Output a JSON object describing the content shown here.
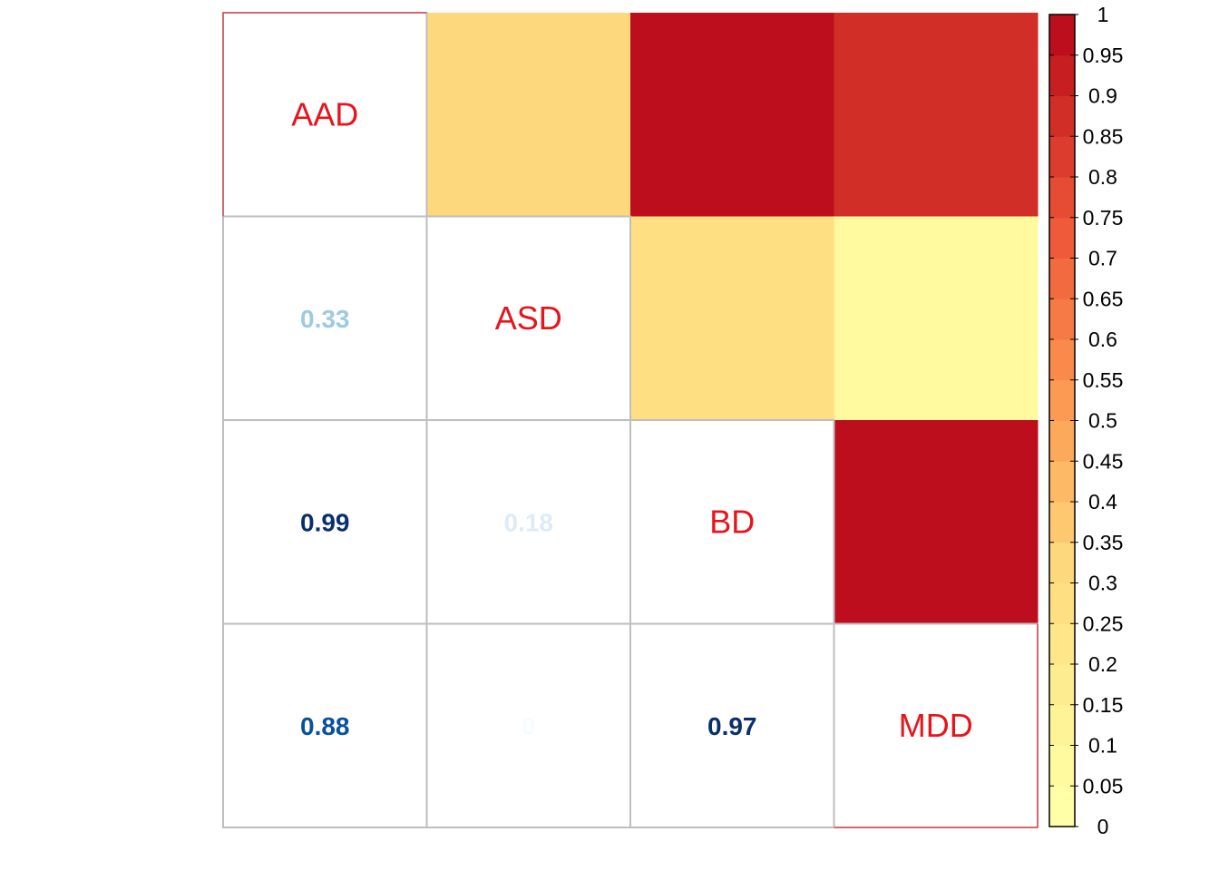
{
  "chart_data": {
    "type": "heatmap",
    "variables": [
      "AAD",
      "ASD",
      "BD",
      "MDD"
    ],
    "upper_triangle_values": [
      {
        "row": "AAD",
        "col": "ASD",
        "value": 0.3
      },
      {
        "row": "AAD",
        "col": "BD",
        "value": 0.98
      },
      {
        "row": "AAD",
        "col": "MDD",
        "value": 0.89
      },
      {
        "row": "ASD",
        "col": "BD",
        "value": 0.27
      },
      {
        "row": "ASD",
        "col": "MDD",
        "value": 0.07
      },
      {
        "row": "BD",
        "col": "MDD",
        "value": 0.97
      }
    ],
    "lower_triangle_labels": [
      {
        "row": "ASD",
        "col": "AAD",
        "value": 0.33,
        "label": "0.33"
      },
      {
        "row": "BD",
        "col": "AAD",
        "value": 0.99,
        "label": "0.99"
      },
      {
        "row": "BD",
        "col": "ASD",
        "value": 0.18,
        "label": "0.18"
      },
      {
        "row": "MDD",
        "col": "AAD",
        "value": 0.88,
        "label": "0.88"
      },
      {
        "row": "MDD",
        "col": "ASD",
        "value": 0.0,
        "label": "0"
      },
      {
        "row": "MDD",
        "col": "BD",
        "value": 0.97,
        "label": "0.97"
      }
    ],
    "colorbar": {
      "range": [
        0,
        1
      ],
      "ticks": [
        "0",
        "0.05",
        "0.1",
        "0.15",
        "0.2",
        "0.25",
        "0.3",
        "0.35",
        "0.4",
        "0.45",
        "0.5",
        "0.55",
        "0.6",
        "0.65",
        "0.7",
        "0.75",
        "0.8",
        "0.85",
        "0.9",
        "0.95",
        "1"
      ],
      "colors": [
        "#FFFFA8",
        "#FFF9A0",
        "#FFF398",
        "#FEEC90",
        "#FEE689",
        "#FEDF82",
        "#FDD87C",
        "#FDC870",
        "#FDB965",
        "#FDA95C",
        "#FC9A54",
        "#FA8A4C",
        "#F67A45",
        "#F26A3F",
        "#EE5A3A",
        "#E64B33",
        "#DC3C2D",
        "#D12E27",
        "#C71E22",
        "#BD0E1E"
      ]
    },
    "lower_label_colors": [
      "#F7FBFF",
      "#DEEBF7",
      "#C6DBEF",
      "#9ECAE1",
      "#6BAED6",
      "#4292C6",
      "#2171B5",
      "#08519C",
      "#08306B"
    ],
    "diagonal_label_color": "#E8131C",
    "grid": true,
    "legend_position": "right"
  }
}
